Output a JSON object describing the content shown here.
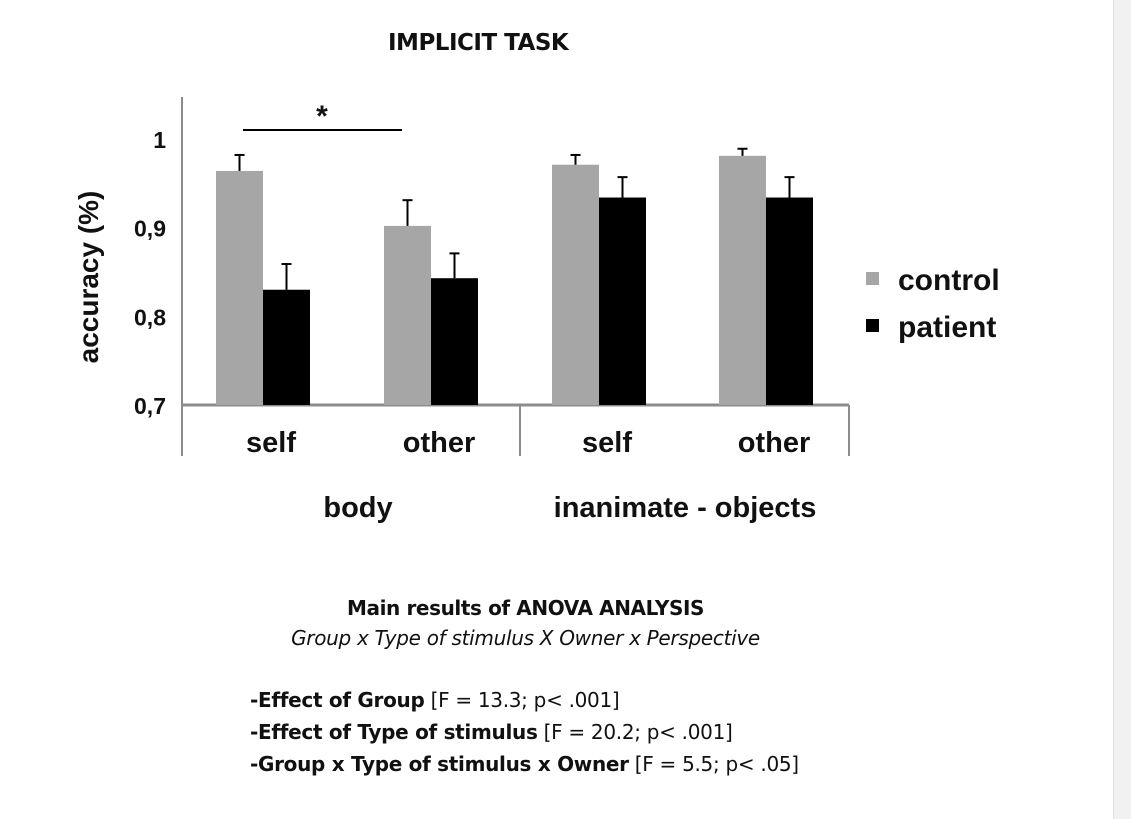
{
  "chart_data": {
    "type": "bar",
    "title": "IMPLICIT TASK",
    "ylabel": "accuracy (%)",
    "ylim": [
      0.7,
      1.0
    ],
    "yticks": [
      "0,7",
      "0,8",
      "0,9",
      "1"
    ],
    "categories": [
      "self",
      "other",
      "self",
      "other"
    ],
    "groups": [
      "body",
      "inanimate - objects"
    ],
    "series": [
      {
        "name": "control",
        "color": "#a6a6a6",
        "values": [
          0.964,
          0.902,
          0.971,
          0.981
        ],
        "errors": [
          0.018,
          0.029,
          0.011,
          0.008
        ]
      },
      {
        "name": "patient",
        "color": "#000000",
        "values": [
          0.83,
          0.843,
          0.934,
          0.934
        ],
        "errors": [
          0.029,
          0.028,
          0.023,
          0.023
        ]
      }
    ],
    "significance": {
      "label": "*"
    },
    "legend": "right"
  },
  "anova": {
    "title": "Main results of ANOVA ANALYSIS",
    "subtitle": "Group x Type of stimulus X Owner x Perspective",
    "effects": [
      {
        "label": "-Effect of Group",
        "stat": "[F = 13.3; p< .001]"
      },
      {
        "label": "-Effect of Type of stimulus",
        "stat": "[F = 20.2; p< .001]"
      },
      {
        "label": "-Group x Type of stimulus x Owner",
        "stat": "[F = 5.5; p< .05]"
      }
    ]
  }
}
